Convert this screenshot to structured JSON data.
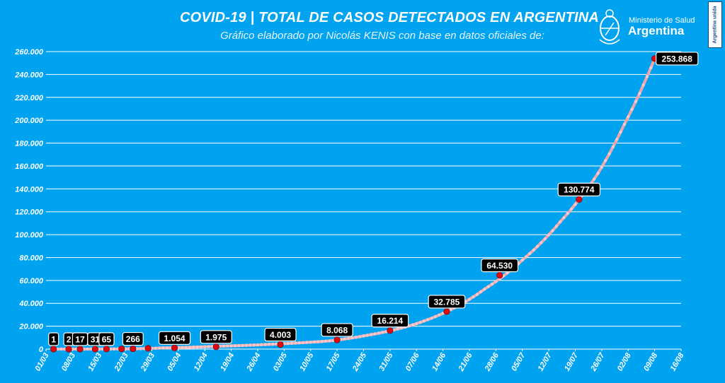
{
  "header": {
    "title": "COVID-19  |  TOTAL DE CASOS DETECTADOS EN ARGENTINA",
    "subtitle": "Gráfico elaborado por Nicolás KENIS con base en datos oficiales de:"
  },
  "logo": {
    "line1": "Ministerio de Salud",
    "line2": "Argentina",
    "badge": "Argentina unida"
  },
  "colors": {
    "background": "#00a3ef",
    "line": "#f1a6ab",
    "marker": "#dd0a12",
    "label_bg": "#000000",
    "grid": "#ffffff"
  },
  "chart_data": {
    "type": "line",
    "title": "COVID-19  |  TOTAL DE CASOS DETECTADOS EN ARGENTINA",
    "xlabel": "",
    "ylabel": "",
    "grid": true,
    "ylim": [
      0,
      260000
    ],
    "yticks": [
      0,
      20000,
      40000,
      60000,
      80000,
      100000,
      120000,
      140000,
      160000,
      180000,
      200000,
      220000,
      240000,
      260000
    ],
    "ytick_labels": [
      "0",
      "20.000",
      "40.000",
      "60.000",
      "80.000",
      "100.000",
      "120.000",
      "140.000",
      "160.000",
      "180.000",
      "200.000",
      "220.000",
      "240.000",
      "260.000"
    ],
    "xlim": [
      "2020-03-01",
      "2020-08-16"
    ],
    "xtick_labels": [
      "01/03",
      "08/03",
      "15/03",
      "22/03",
      "29/03",
      "05/04",
      "12/04",
      "19/04",
      "26/04",
      "03/05",
      "10/05",
      "17/05",
      "24/05",
      "31/05",
      "07/06",
      "14/06",
      "21/06",
      "28/06",
      "05/07",
      "12/07",
      "19/07",
      "26/07",
      "02/08",
      "09/08",
      "16/08"
    ],
    "series": [
      {
        "type": "line",
        "points": [
          {
            "x": "2020-03-03",
            "y": 1
          },
          {
            "x": "2020-03-10",
            "y": 17
          },
          {
            "x": "2020-03-20",
            "y": 128
          },
          {
            "x": "2020-04-01",
            "y": 1054
          },
          {
            "x": "2020-04-15",
            "y": 2432
          },
          {
            "x": "2020-05-01",
            "y": 4428
          },
          {
            "x": "2020-05-15",
            "y": 7134
          },
          {
            "x": "2020-05-25",
            "y": 12076
          },
          {
            "x": "2020-06-05",
            "y": 20197
          },
          {
            "x": "2020-06-15",
            "y": 32785
          },
          {
            "x": "2020-06-25",
            "y": 52444
          },
          {
            "x": "2020-07-05",
            "y": 77815
          },
          {
            "x": "2020-07-15",
            "y": 111160
          },
          {
            "x": "2020-07-25",
            "y": 153520
          },
          {
            "x": "2020-08-01",
            "y": 196543
          },
          {
            "x": "2020-08-09",
            "y": 253868
          }
        ]
      },
      {
        "type": "markers",
        "points": [
          {
            "x": "2020-03-03",
            "y": 1,
            "label": "1"
          },
          {
            "x": "2020-03-07",
            "y": 2,
            "label": "2"
          },
          {
            "x": "2020-03-10",
            "y": 17,
            "label": "17"
          },
          {
            "x": "2020-03-14",
            "y": 31,
            "label": "31"
          },
          {
            "x": "2020-03-17",
            "y": 65,
            "label": "65"
          },
          {
            "x": "2020-03-21",
            "y": 158
          },
          {
            "x": "2020-03-24",
            "y": 266,
            "label": "266"
          },
          {
            "x": "2020-03-28",
            "y": 690
          },
          {
            "x": "2020-04-04",
            "y": 1054,
            "label": "1.054"
          },
          {
            "x": "2020-04-15",
            "y": 1975,
            "label": "1.975"
          },
          {
            "x": "2020-05-02",
            "y": 4003,
            "label": "4.003"
          },
          {
            "x": "2020-05-17",
            "y": 8068,
            "label": "8.068"
          },
          {
            "x": "2020-05-31",
            "y": 16214,
            "label": "16.214"
          },
          {
            "x": "2020-06-15",
            "y": 32785,
            "label": "32.785"
          },
          {
            "x": "2020-06-29",
            "y": 64530,
            "label": "64.530"
          },
          {
            "x": "2020-07-20",
            "y": 130774,
            "label": "130.774"
          },
          {
            "x": "2020-08-09",
            "y": 253868,
            "label": "253.868"
          }
        ]
      }
    ]
  }
}
